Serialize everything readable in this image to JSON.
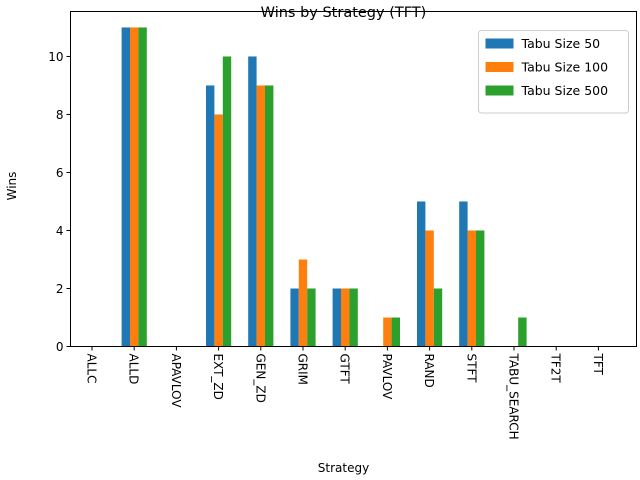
{
  "chart_data": {
    "type": "bar",
    "title": "Wins by Strategy (TFT)",
    "xlabel": "Strategy",
    "ylabel": "Wins",
    "ylim": [
      0,
      11.55
    ],
    "yticks": [
      0,
      2,
      4,
      6,
      8,
      10
    ],
    "categories": [
      "ALLC",
      "ALLD",
      "APAVLOV",
      "EXT_ZD",
      "GEN_ZD",
      "GRIM",
      "GTFT",
      "PAVLOV",
      "RAND",
      "STFT",
      "TABU_SEARCH",
      "TF2T",
      "TFT"
    ],
    "series": [
      {
        "name": "Tabu Size 50",
        "color": "#1f77b4",
        "values": [
          0,
          11,
          0,
          9,
          10,
          2,
          2,
          0,
          5,
          5,
          0,
          0,
          0
        ]
      },
      {
        "name": "Tabu Size 100",
        "color": "#ff7f0e",
        "values": [
          0,
          11,
          0,
          8,
          9,
          3,
          2,
          1,
          4,
          4,
          0,
          0,
          0
        ]
      },
      {
        "name": "Tabu Size 500",
        "color": "#2ca02c",
        "values": [
          0,
          11,
          0,
          10,
          9,
          2,
          2,
          1,
          2,
          4,
          1,
          0,
          0
        ]
      }
    ],
    "grid": false,
    "legend_position": "top-right"
  }
}
